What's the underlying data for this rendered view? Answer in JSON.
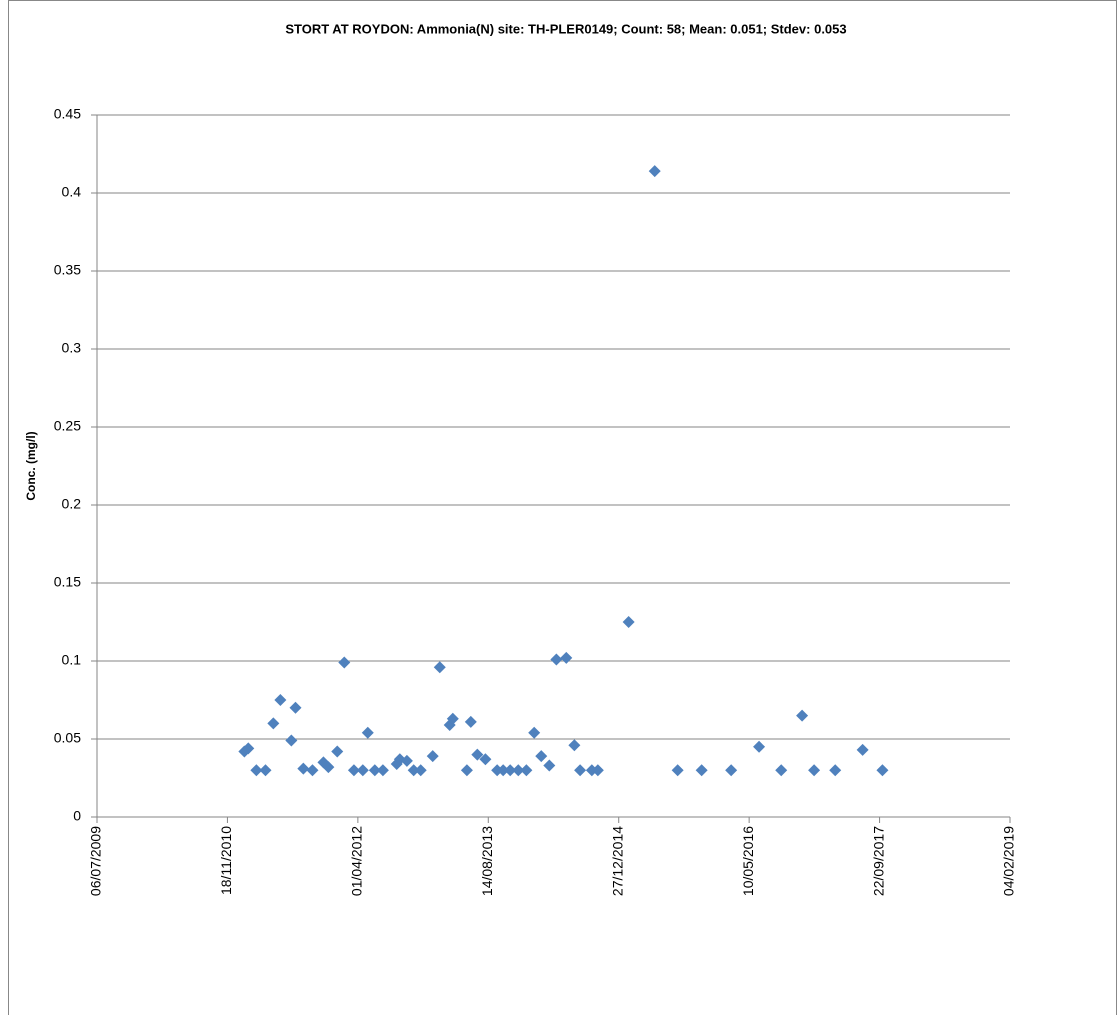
{
  "chart_data": {
    "type": "scatter",
    "title": "STORT AT ROYDON: Ammonia(N) site: TH-PLER0149; Count: 58; Mean: 0.051; Stdev: 0.053",
    "ylabel": "Conc. (mg/l)",
    "color": "#4f81bd",
    "grid": true,
    "xlim": [
      "06/07/2009",
      "04/02/2019"
    ],
    "xticks": [
      "06/07/2009",
      "18/11/2010",
      "01/04/2012",
      "14/08/2013",
      "27/12/2014",
      "10/05/2016",
      "22/09/2017",
      "04/02/2019"
    ],
    "ylim": [
      0,
      0.45
    ],
    "yticks": [
      0,
      0.05,
      0.1,
      0.15,
      0.2,
      0.25,
      0.3,
      0.35,
      0.4,
      0.45
    ],
    "x": [
      "22/01/2011",
      "06/02/2011",
      "09/03/2011",
      "13/04/2011",
      "13/05/2011",
      "09/06/2011",
      "21/07/2011",
      "06/08/2011",
      "05/09/2011",
      "10/10/2011",
      "21/11/2011",
      "10/12/2011",
      "13/01/2012",
      "09/02/2012",
      "17/03/2012",
      "20/04/2012",
      "09/05/2012",
      "05/06/2012",
      "06/07/2012",
      "28/08/2012",
      "09/09/2012",
      "06/10/2012",
      "01/11/2012",
      "28/11/2012",
      "13/01/2013",
      "09/02/2013",
      "19/03/2013",
      "31/03/2013",
      "24/05/2013",
      "08/06/2013",
      "03/07/2013",
      "03/08/2013",
      "17/09/2013",
      "10/10/2013",
      "06/11/2013",
      "07/12/2013",
      "07/01/2014",
      "06/02/2014",
      "05/03/2014",
      "05/04/2014",
      "02/05/2014",
      "09/06/2014",
      "10/07/2014",
      "01/08/2014",
      "15/09/2014",
      "08/10/2014",
      "03/02/2015",
      "14/05/2015",
      "10/08/2015",
      "10/11/2015",
      "02/03/2016",
      "17/06/2016",
      "10/09/2016",
      "29/11/2016",
      "14/01/2017",
      "05/04/2017",
      "19/07/2017",
      "03/10/2017"
    ],
    "values": [
      0.042,
      0.044,
      0.03,
      0.03,
      0.06,
      0.075,
      0.049,
      0.07,
      0.031,
      0.03,
      0.035,
      0.032,
      0.042,
      0.099,
      0.03,
      0.03,
      0.054,
      0.03,
      0.03,
      0.034,
      0.037,
      0.036,
      0.03,
      0.03,
      0.039,
      0.096,
      0.059,
      0.063,
      0.03,
      0.061,
      0.04,
      0.037,
      0.03,
      0.03,
      0.03,
      0.03,
      0.03,
      0.054,
      0.039,
      0.033,
      0.101,
      0.102,
      0.046,
      0.03,
      0.03,
      0.03,
      0.125,
      0.414,
      0.03,
      0.03,
      0.03,
      0.045,
      0.03,
      0.065,
      0.03,
      0.03,
      0.043,
      0.03
    ]
  }
}
